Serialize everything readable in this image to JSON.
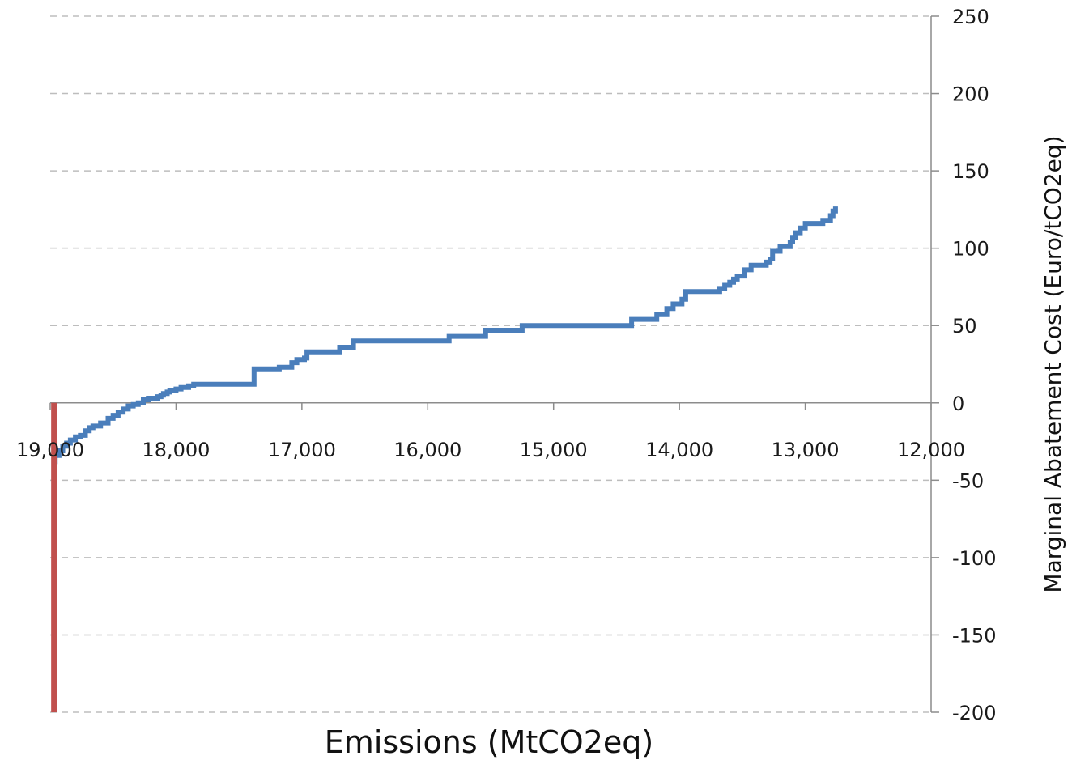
{
  "chart_data": {
    "type": "line",
    "title": "",
    "xlabel": "Emissions (MtCO2eq)",
    "ylabel": "Marginal Abatement Cost (Euro/tCO2eq)",
    "x_axis": {
      "range": [
        19000,
        12000
      ],
      "reversed": true,
      "ticks": [
        19000,
        18000,
        17000,
        16000,
        15000,
        14000,
        13000,
        12000
      ],
      "tick_labels": [
        "19,000",
        "18,000",
        "17,000",
        "16,000",
        "15,000",
        "14,000",
        "13,000",
        "12,000"
      ],
      "crosses_y_at": 0
    },
    "y_axis": {
      "range": [
        -200,
        250
      ],
      "position": "right",
      "ticks": [
        -200,
        -150,
        -100,
        -50,
        0,
        50,
        100,
        150,
        200,
        250
      ],
      "tick_labels": [
        "-200",
        "-150",
        "-100",
        "-50",
        "0",
        "50",
        "100",
        "150",
        "200",
        "250"
      ]
    },
    "grid": {
      "horizontal": true,
      "vertical": false,
      "style": "dashed"
    },
    "legend": "none",
    "series": [
      {
        "kind": "step",
        "color": "#4a7ebb",
        "x": [
          18990,
          18960,
          18930,
          18900,
          18870,
          18840,
          18800,
          18760,
          18720,
          18690,
          18660,
          18600,
          18540,
          18500,
          18460,
          18420,
          18380,
          18340,
          18300,
          18260,
          18220,
          18180,
          18150,
          18120,
          18100,
          18070,
          18050,
          18000,
          17960,
          17900,
          17860,
          17380,
          17180,
          17080,
          17040,
          16980,
          16960,
          16700,
          16590,
          15830,
          15540,
          15250,
          14380,
          14180,
          14100,
          14050,
          13980,
          13950,
          13950,
          13680,
          13640,
          13600,
          13570,
          13540,
          13480,
          13430,
          13310,
          13280,
          13260,
          13260,
          13200,
          13120,
          13100,
          13080,
          13040,
          13000,
          12860,
          12800,
          12780,
          12760
        ],
        "y": [
          -38,
          -34,
          -31,
          -28,
          -26,
          -24,
          -22,
          -21,
          -18,
          -16,
          -15,
          -13,
          -10,
          -8,
          -6,
          -4,
          -2,
          -1,
          0,
          2,
          3,
          3,
          4,
          5,
          6,
          7,
          8,
          9,
          10,
          11,
          12,
          22,
          23,
          26,
          28,
          29,
          33,
          36,
          40,
          43,
          47,
          50,
          54,
          57,
          61,
          64,
          67,
          69,
          72,
          74,
          76,
          78,
          80,
          82,
          86,
          89,
          91,
          93,
          95,
          98,
          101,
          104,
          107,
          110,
          113,
          116,
          118,
          121,
          124,
          127
        ],
        "y_values_note": ""
      },
      {
        "kind": "vertical-line",
        "color": "#c0504d",
        "x": [
          18970,
          18970
        ],
        "y": [
          0,
          -200
        ]
      }
    ]
  }
}
